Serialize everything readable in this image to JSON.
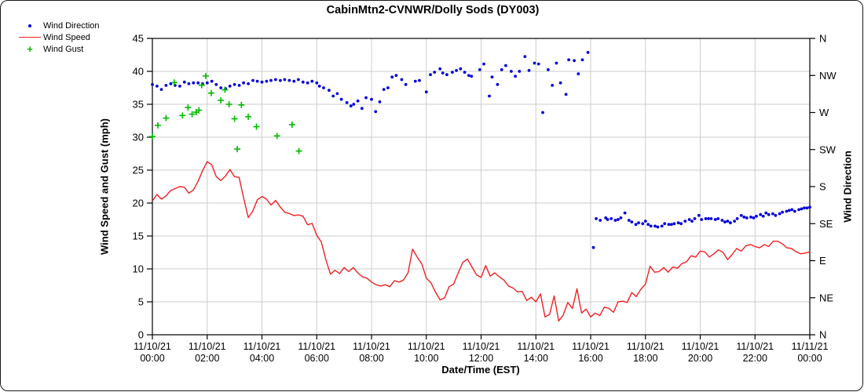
{
  "chart_data": {
    "type": "line",
    "title": "CabinMtn2-CVNWR/Dolly Sods (DY003)",
    "xlabel": "Date/Time (EST)",
    "ylabel_left": "Wind Speed and Gust (mph)",
    "ylabel_right": "Wind Direction",
    "ylim_left": [
      0,
      45
    ],
    "y_ticks_left": [
      0,
      5,
      10,
      15,
      20,
      25,
      30,
      35,
      40,
      45
    ],
    "right_axis_degrees_range": [
      0,
      360
    ],
    "right_axis_ticks": [
      {
        "deg": 360,
        "label": "N"
      },
      {
        "deg": 315,
        "label": "NW"
      },
      {
        "deg": 270,
        "label": "W"
      },
      {
        "deg": 225,
        "label": "SW"
      },
      {
        "deg": 180,
        "label": "S"
      },
      {
        "deg": 135,
        "label": "SE"
      },
      {
        "deg": 90,
        "label": "E"
      },
      {
        "deg": 45,
        "label": "NE"
      },
      {
        "deg": 0,
        "label": "N"
      }
    ],
    "x_range_hours": [
      0,
      24
    ],
    "x_ticks": [
      {
        "hour": 0,
        "date": "11/10/21",
        "time": "00:00"
      },
      {
        "hour": 2,
        "date": "11/10/21",
        "time": "02:00"
      },
      {
        "hour": 4,
        "date": "11/10/21",
        "time": "04:00"
      },
      {
        "hour": 6,
        "date": "11/10/21",
        "time": "06:00"
      },
      {
        "hour": 8,
        "date": "11/10/21",
        "time": "08:00"
      },
      {
        "hour": 10,
        "date": "11/10/21",
        "time": "10:00"
      },
      {
        "hour": 12,
        "date": "11/10/21",
        "time": "12:00"
      },
      {
        "hour": 14,
        "date": "11/10/21",
        "time": "14:00"
      },
      {
        "hour": 16,
        "date": "11/10/21",
        "time": "16:00"
      },
      {
        "hour": 18,
        "date": "11/10/21",
        "time": "18:00"
      },
      {
        "hour": 20,
        "date": "11/10/21",
        "time": "20:00"
      },
      {
        "hour": 22,
        "date": "11/10/21",
        "time": "22:00"
      },
      {
        "hour": 24,
        "date": "11/11/21",
        "time": "00:00"
      }
    ],
    "grid": true,
    "legend": [
      {
        "label": "Wind Direction",
        "marker": "dot",
        "color": "#0000d8"
      },
      {
        "label": "Wind Speed",
        "marker": "line",
        "color": "#ee2222"
      },
      {
        "label": "Wind Gust",
        "marker": "plus",
        "color": "#00bb00"
      }
    ],
    "series": [
      {
        "name": "Wind Speed",
        "type": "line",
        "axis": "left",
        "color": "#ee2222",
        "start_hour": 0,
        "step_minutes": 10,
        "values": [
          20.3,
          21.3,
          20.6,
          21.1,
          21.9,
          22.2,
          22.5,
          22.4,
          21.5,
          22.0,
          23.3,
          24.9,
          26.3,
          25.8,
          24.0,
          23.4,
          24.1,
          25.1,
          24.0,
          23.9,
          20.7,
          17.8,
          18.8,
          20.5,
          21.0,
          20.6,
          19.7,
          20.4,
          19.4,
          18.6,
          18.4,
          18.1,
          18.2,
          18.0,
          16.7,
          16.9,
          15.1,
          14.1,
          11.4,
          9.2,
          9.8,
          9.3,
          10.2,
          9.6,
          10.2,
          9.4,
          8.8,
          8.6,
          8.0,
          7.6,
          7.4,
          7.6,
          7.3,
          8.2,
          8.0,
          8.3,
          9.4,
          13.0,
          11.8,
          10.8,
          8.6,
          7.9,
          6.5,
          5.3,
          5.6,
          7.3,
          7.7,
          9.4,
          11.0,
          11.5,
          10.3,
          9.1,
          8.7,
          10.5,
          8.9,
          9.4,
          8.8,
          8.3,
          7.4,
          7.1,
          6.5,
          6.6,
          5.2,
          5.7,
          5.0,
          6.2,
          2.7,
          3.1,
          5.9,
          2.1,
          3.0,
          4.9,
          4.0,
          7.0,
          3.3,
          3.9,
          2.7,
          3.3,
          2.9,
          4.2,
          4.0,
          3.4,
          5.0,
          5.1,
          4.9,
          6.4,
          5.8,
          6.9,
          7.7,
          10.4,
          9.5,
          9.6,
          10.2,
          9.5,
          10.3,
          10.1,
          10.8,
          11.1,
          12.0,
          11.8,
          12.7,
          12.6,
          11.8,
          12.3,
          12.9,
          12.5,
          11.4,
          12.2,
          13.1,
          12.7,
          13.5,
          13.7,
          13.4,
          13.2,
          13.7,
          13.4,
          14.2,
          14.2,
          13.8,
          13.2,
          13.1,
          12.6,
          12.3,
          12.4,
          12.6
        ]
      },
      {
        "name": "Wind Direction",
        "type": "scatter",
        "axis": "right",
        "color": "#0000d8",
        "points": [
          [
            0.0,
            304
          ],
          [
            0.17,
            302
          ],
          [
            0.33,
            298
          ],
          [
            0.5,
            303
          ],
          [
            0.67,
            305
          ],
          [
            0.83,
            303
          ],
          [
            1.0,
            302
          ],
          [
            1.17,
            307
          ],
          [
            1.33,
            305
          ],
          [
            1.5,
            306
          ],
          [
            1.67,
            306
          ],
          [
            1.83,
            305
          ],
          [
            2.0,
            306
          ],
          [
            2.17,
            308
          ],
          [
            2.33,
            304
          ],
          [
            2.5,
            300
          ],
          [
            2.67,
            299
          ],
          [
            2.83,
            302
          ],
          [
            3.0,
            304
          ],
          [
            3.17,
            303
          ],
          [
            3.33,
            306
          ],
          [
            3.5,
            305
          ],
          [
            3.67,
            309
          ],
          [
            3.83,
            308
          ],
          [
            4.0,
            307
          ],
          [
            4.17,
            308
          ],
          [
            4.33,
            309
          ],
          [
            4.5,
            310
          ],
          [
            4.67,
            309
          ],
          [
            4.83,
            310
          ],
          [
            5.0,
            309
          ],
          [
            5.17,
            308
          ],
          [
            5.33,
            310
          ],
          [
            5.5,
            307
          ],
          [
            5.67,
            306
          ],
          [
            5.83,
            308
          ],
          [
            6.0,
            306
          ],
          [
            6.1,
            302
          ],
          [
            6.25,
            300
          ],
          [
            6.45,
            297
          ],
          [
            6.6,
            290
          ],
          [
            6.75,
            293
          ],
          [
            6.9,
            286
          ],
          [
            7.1,
            282
          ],
          [
            7.25,
            278
          ],
          [
            7.35,
            280
          ],
          [
            7.5,
            284
          ],
          [
            7.65,
            275
          ],
          [
            7.8,
            288
          ],
          [
            8.0,
            286
          ],
          [
            8.15,
            271
          ],
          [
            8.3,
            283
          ],
          [
            8.45,
            298
          ],
          [
            8.6,
            300
          ],
          [
            8.75,
            313
          ],
          [
            8.9,
            315
          ],
          [
            9.1,
            310
          ],
          [
            9.25,
            304
          ],
          [
            9.6,
            308
          ],
          [
            9.75,
            309
          ],
          [
            10.0,
            295
          ],
          [
            10.15,
            316
          ],
          [
            10.3,
            319
          ],
          [
            10.5,
            323
          ],
          [
            10.6,
            318
          ],
          [
            10.75,
            316
          ],
          [
            10.95,
            319
          ],
          [
            11.1,
            321
          ],
          [
            11.25,
            323
          ],
          [
            11.4,
            319
          ],
          [
            11.55,
            315
          ],
          [
            11.65,
            314
          ],
          [
            11.95,
            322
          ],
          [
            12.1,
            329
          ],
          [
            12.3,
            290
          ],
          [
            12.4,
            313
          ],
          [
            12.6,
            304
          ],
          [
            12.75,
            322
          ],
          [
            12.9,
            327
          ],
          [
            13.1,
            320
          ],
          [
            13.25,
            314
          ],
          [
            13.4,
            320
          ],
          [
            13.6,
            338
          ],
          [
            13.75,
            321
          ],
          [
            13.95,
            330
          ],
          [
            14.1,
            329
          ],
          [
            14.25,
            270
          ],
          [
            14.45,
            322
          ],
          [
            14.6,
            303
          ],
          [
            14.75,
            330
          ],
          [
            14.9,
            306
          ],
          [
            15.1,
            292
          ],
          [
            15.2,
            334
          ],
          [
            15.4,
            333
          ],
          [
            15.55,
            317
          ],
          [
            15.7,
            334
          ],
          [
            15.9,
            343
          ],
          [
            16.1,
            106
          ],
          [
            16.2,
            141
          ],
          [
            16.35,
            139
          ],
          [
            16.55,
            142
          ],
          [
            16.62,
            140
          ],
          [
            16.75,
            141
          ],
          [
            16.9,
            139
          ],
          [
            17.0,
            140
          ],
          [
            17.1,
            142
          ],
          [
            17.25,
            148
          ],
          [
            17.4,
            139
          ],
          [
            17.5,
            137
          ],
          [
            17.65,
            134
          ],
          [
            17.75,
            136
          ],
          [
            17.9,
            135
          ],
          [
            18.0,
            138
          ],
          [
            18.1,
            134
          ],
          [
            18.2,
            132
          ],
          [
            18.35,
            132
          ],
          [
            18.45,
            131
          ],
          [
            18.6,
            132
          ],
          [
            18.7,
            135
          ],
          [
            18.85,
            134
          ],
          [
            18.95,
            134
          ],
          [
            19.05,
            135
          ],
          [
            19.2,
            136
          ],
          [
            19.3,
            135
          ],
          [
            19.45,
            138
          ],
          [
            19.6,
            140
          ],
          [
            19.7,
            138
          ],
          [
            19.8,
            141
          ],
          [
            19.95,
            145
          ],
          [
            20.05,
            140
          ],
          [
            20.2,
            141
          ],
          [
            20.3,
            141
          ],
          [
            20.4,
            141
          ],
          [
            20.55,
            140
          ],
          [
            20.65,
            141
          ],
          [
            20.8,
            139
          ],
          [
            20.9,
            137
          ],
          [
            21.0,
            138
          ],
          [
            21.1,
            136
          ],
          [
            21.25,
            138
          ],
          [
            21.35,
            141
          ],
          [
            21.5,
            145
          ],
          [
            21.6,
            143
          ],
          [
            21.7,
            142
          ],
          [
            21.85,
            143
          ],
          [
            21.95,
            142
          ],
          [
            22.05,
            144
          ],
          [
            22.2,
            146
          ],
          [
            22.3,
            144
          ],
          [
            22.4,
            148
          ],
          [
            22.5,
            146
          ],
          [
            22.65,
            147
          ],
          [
            22.75,
            145
          ],
          [
            22.9,
            147
          ],
          [
            23.0,
            149
          ],
          [
            23.15,
            150
          ],
          [
            23.25,
            151
          ],
          [
            23.35,
            152
          ],
          [
            23.45,
            150
          ],
          [
            23.6,
            152
          ],
          [
            23.7,
            153
          ],
          [
            23.8,
            154
          ],
          [
            23.9,
            154
          ],
          [
            24.0,
            155
          ]
        ]
      },
      {
        "name": "Wind Gust",
        "type": "scatter-plus",
        "axis": "left",
        "color": "#00bb00",
        "points": [
          [
            0.0,
            30.1
          ],
          [
            0.2,
            31.8
          ],
          [
            0.5,
            32.9
          ],
          [
            0.8,
            38.3
          ],
          [
            1.1,
            33.3
          ],
          [
            1.3,
            34.5
          ],
          [
            1.45,
            33.5
          ],
          [
            1.6,
            33.8
          ],
          [
            1.7,
            34.1
          ],
          [
            1.8,
            37.9
          ],
          [
            1.95,
            39.3
          ],
          [
            2.15,
            36.7
          ],
          [
            2.5,
            35.6
          ],
          [
            2.65,
            37.2
          ],
          [
            2.8,
            35.0
          ],
          [
            3.0,
            32.8
          ],
          [
            3.1,
            28.2
          ],
          [
            3.25,
            34.9
          ],
          [
            3.5,
            33.1
          ],
          [
            3.8,
            31.6
          ],
          [
            4.55,
            30.2
          ],
          [
            5.1,
            31.9
          ],
          [
            5.35,
            27.9
          ]
        ]
      }
    ]
  }
}
